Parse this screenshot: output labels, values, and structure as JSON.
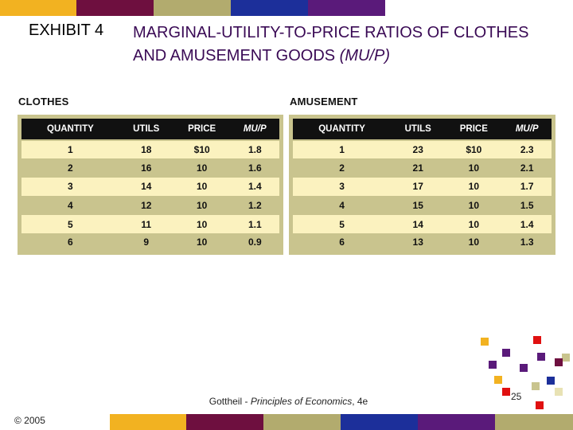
{
  "colors": {
    "gold": "#f2b221",
    "maroon": "#6e0f3f",
    "olive": "#b2ab6e",
    "blue": "#1c2f9a",
    "purple": "#5a1a7a",
    "red": "#e01010",
    "header_bg": "#111111",
    "row_light": "#fbf2bf",
    "row_dark": "#c9c48e",
    "title": "#3a0a55"
  },
  "header": {
    "exhibit_label": "EXHIBIT 4",
    "title_main": "MARGINAL-UTILITY-TO-PRICE RATIOS OF CLOTHES AND AMUSEMENT GOODS ",
    "title_italic": "(MU/P)"
  },
  "clothes": {
    "heading": "CLOTHES",
    "columns": [
      "QUANTITY",
      "UTILS",
      "PRICE",
      "MU/P"
    ],
    "rows": [
      [
        "1",
        "18",
        "$10",
        "1.8"
      ],
      [
        "2",
        "16",
        "10",
        "1.6"
      ],
      [
        "3",
        "14",
        "10",
        "1.4"
      ],
      [
        "4",
        "12",
        "10",
        "1.2"
      ],
      [
        "5",
        "11",
        "10",
        "1.1"
      ],
      [
        "6",
        "9",
        "10",
        "0.9"
      ]
    ]
  },
  "amusement": {
    "heading": "AMUSEMENT",
    "columns": [
      "QUANTITY",
      "UTILS",
      "PRICE",
      "MU/P"
    ],
    "rows": [
      [
        "1",
        "23",
        "$10",
        "2.3"
      ],
      [
        "2",
        "21",
        "10",
        "2.1"
      ],
      [
        "3",
        "17",
        "10",
        "1.7"
      ],
      [
        "4",
        "15",
        "10",
        "1.5"
      ],
      [
        "5",
        "14",
        "10",
        "1.4"
      ],
      [
        "6",
        "13",
        "10",
        "1.3"
      ]
    ]
  },
  "footer": {
    "copyright": "© 2005",
    "citation_author": "Gottheil - ",
    "citation_title": "Principles of Economics",
    "citation_edition": ", 4e",
    "page_number": "25"
  }
}
